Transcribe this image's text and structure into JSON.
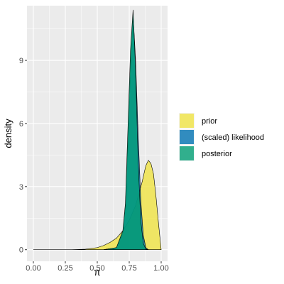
{
  "chart_data": {
    "type": "area",
    "xlabel": "π",
    "ylabel": "density",
    "xlim": [
      -0.05,
      1.05
    ],
    "ylim": [
      -0.55,
      11.6
    ],
    "x_ticks": [
      0,
      0.25,
      0.5,
      0.75,
      1
    ],
    "x_tick_labels": [
      "0.00",
      "0.25",
      "0.50",
      "0.75",
      "1.00"
    ],
    "y_ticks": [
      0,
      3,
      6,
      9
    ],
    "y_tick_labels": [
      "0",
      "3",
      "6",
      "9"
    ],
    "grid": true,
    "legend_position": "right",
    "series": [
      {
        "name": "prior",
        "color": "#F0E442",
        "x": [
          0,
          0.3,
          0.4,
          0.5,
          0.55,
          0.6,
          0.65,
          0.7,
          0.75,
          0.8,
          0.85,
          0.88,
          0.9,
          0.92,
          0.94,
          0.96,
          0.98,
          1.0
        ],
        "y": [
          0,
          0,
          0.02,
          0.1,
          0.2,
          0.35,
          0.55,
          0.9,
          1.4,
          2.1,
          3.2,
          4.0,
          4.25,
          4.1,
          3.6,
          2.5,
          1.2,
          0
        ]
      },
      {
        "name": "(scaled) likelihood",
        "color": "#0072B2",
        "x": [
          0.55,
          0.65,
          0.7,
          0.72,
          0.74,
          0.76,
          0.78,
          0.8,
          0.82,
          0.84,
          0.86,
          0.88,
          0.9
        ],
        "y": [
          0,
          0.1,
          0.8,
          2.0,
          5.0,
          8.5,
          11.2,
          9.0,
          5.5,
          2.4,
          0.7,
          0.1,
          0
        ]
      },
      {
        "name": "posterior",
        "color": "#009E73",
        "x": [
          0.55,
          0.65,
          0.7,
          0.72,
          0.74,
          0.76,
          0.78,
          0.8,
          0.82,
          0.84,
          0.86,
          0.88,
          0.9
        ],
        "y": [
          0,
          0.1,
          0.9,
          2.2,
          5.8,
          9.5,
          11.4,
          8.5,
          4.2,
          1.4,
          0.3,
          0.03,
          0
        ]
      }
    ]
  },
  "legend": {
    "items": [
      {
        "label": "prior",
        "color": "#F0E442"
      },
      {
        "label": "(scaled) likelihood",
        "color": "#0072B2"
      },
      {
        "label": "posterior",
        "color": "#009E73"
      }
    ]
  },
  "style": {
    "panel_background": "#EBEBEB",
    "grid_major": "#FFFFFF",
    "fill_opacity": 0.8
  }
}
